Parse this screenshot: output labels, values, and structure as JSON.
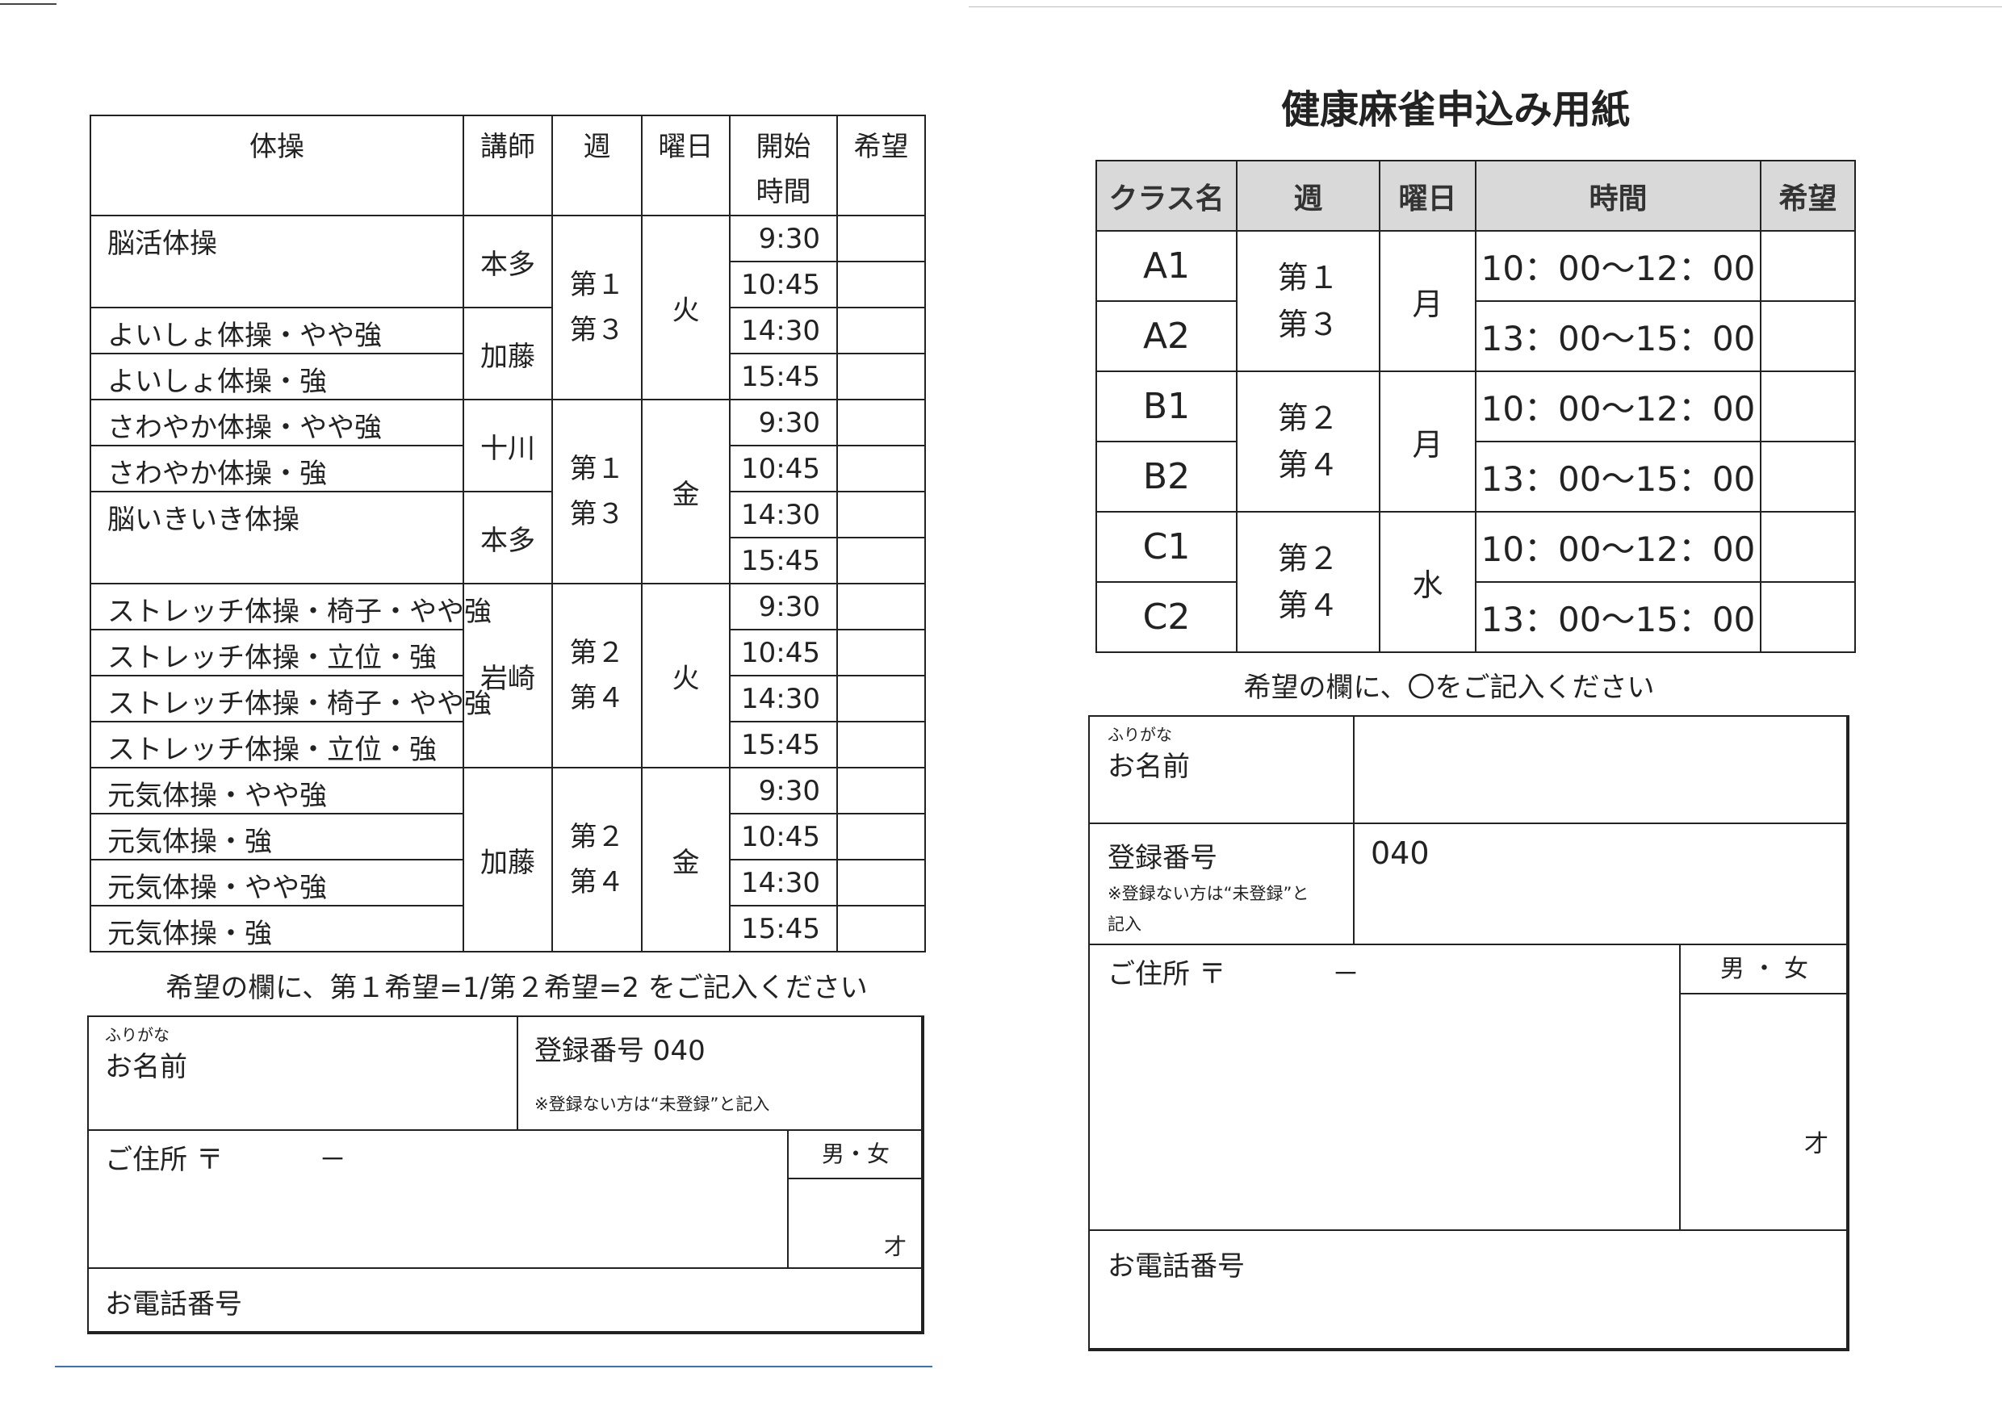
{
  "left": {
    "headers": {
      "exercise": "体操",
      "instructor": "講師",
      "week": "週",
      "day": "曜日",
      "start": "開始",
      "start2": "時間",
      "wish": "希望"
    },
    "groups": [
      {
        "week1": "第１",
        "week2": "第３",
        "day": "火",
        "times": [
          "9:30",
          "10:45",
          "14:30",
          "15:45"
        ],
        "exercises": [
          "脳活体操",
          "よいしょ体操・やや強",
          "よいしょ体操・強"
        ],
        "instructors": [
          "本多",
          "加藤"
        ]
      },
      {
        "week1": "第１",
        "week2": "第３",
        "day": "金",
        "times": [
          "9:30",
          "10:45",
          "14:30",
          "15:45"
        ],
        "exercises": [
          "さわやか体操・やや強",
          "さわやか体操・強",
          "脳いきいき体操"
        ],
        "instructors": [
          "十川",
          "本多"
        ]
      },
      {
        "week1": "第２",
        "week2": "第４",
        "day": "火",
        "times": [
          "9:30",
          "10:45",
          "14:30",
          "15:45"
        ],
        "exercises": [
          "ストレッチ体操・椅子・やや強",
          "ストレッチ体操・立位・強",
          "ストレッチ体操・椅子・やや強",
          "ストレッチ体操・立位・強"
        ],
        "instructors": [
          "岩崎"
        ]
      },
      {
        "week1": "第２",
        "week2": "第４",
        "day": "金",
        "times": [
          "9:30",
          "10:45",
          "14:30",
          "15:45"
        ],
        "exercises": [
          "元気体操・やや強",
          "元気体操・強",
          "元気体操・やや強",
          "元気体操・強"
        ],
        "instructors": [
          "加藤"
        ]
      }
    ],
    "caption": "希望の欄に、第１希望=1/第２希望=2 をご記入ください",
    "form": {
      "furigana": "ふりがな",
      "name": "お名前",
      "reg": "登録番号 040",
      "reg_note": "※登録ない方は“未登録”と記入",
      "address": "ご住所 〒",
      "dash": "－",
      "gender": "男・女",
      "age": "才",
      "phone": "お電話番号"
    }
  },
  "right": {
    "title": "健康麻雀申込み用紙",
    "headers": {
      "class": "クラス名",
      "week": "週",
      "day": "曜日",
      "time": "時間",
      "wish": "希望"
    },
    "groups": [
      {
        "classes": [
          "A1",
          "A2"
        ],
        "week1": "第１",
        "week2": "第３",
        "day": "月",
        "times": [
          "10：00～12：00",
          "13：00～15：00"
        ]
      },
      {
        "classes": [
          "B1",
          "B2"
        ],
        "week1": "第２",
        "week2": "第４",
        "day": "月",
        "times": [
          "10：00～12：00",
          "13：00～15：00"
        ]
      },
      {
        "classes": [
          "C1",
          "C2"
        ],
        "week1": "第２",
        "week2": "第４",
        "day": "水",
        "times": [
          "10：00～12：00",
          "13：00～15：00"
        ]
      }
    ],
    "caption": "希望の欄に、〇をご記入ください",
    "form": {
      "furigana": "ふりがな",
      "name": "お名前",
      "reg_label": "登録番号",
      "reg_note1": "※登録ない方は“未登録”と",
      "reg_note2": "記入",
      "reg_value": "040",
      "address": "ご住所 〒",
      "dash": "－",
      "gender": "男 ・ 女",
      "age": "才",
      "phone": "お電話番号"
    }
  },
  "colors": {
    "ink": "#222222",
    "header_bg": "#d9d9d9",
    "scan_line": "#3a6fc4"
  }
}
